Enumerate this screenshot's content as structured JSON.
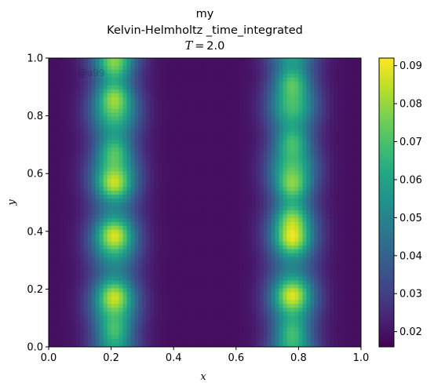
{
  "title": {
    "line1": "my",
    "line2": "Kelvin-Helmholtz _time_integrated",
    "line3": "T = 2.0"
  },
  "watermark": "@a99",
  "chart_data": {
    "type": "heatmap",
    "title": "my Kelvin-Helmholtz _time_integrated T = 2.0",
    "xlabel": "x",
    "ylabel": "y",
    "xlim": [
      0.0,
      1.0
    ],
    "ylim": [
      0.0,
      1.0
    ],
    "x_ticks": [
      "0.0",
      "0.2",
      "0.4",
      "0.6",
      "0.8",
      "1.0"
    ],
    "y_ticks": [
      "0.0",
      "0.2",
      "0.4",
      "0.6",
      "0.8",
      "1.0"
    ],
    "colormap": "viridis",
    "colorbar": {
      "min": 0.016,
      "max": 0.092,
      "ticks": [
        "0.02",
        "0.03",
        "0.04",
        "0.05",
        "0.06",
        "0.07",
        "0.08",
        "0.09"
      ]
    },
    "bands": [
      {
        "x_center": 0.21,
        "hotspots_y": [
          0.05,
          0.18,
          0.39,
          0.56,
          0.68,
          0.87,
          0.97
        ]
      },
      {
        "x_center": 0.78,
        "hotspots_y": [
          0.05,
          0.18,
          0.37,
          0.45,
          0.55,
          0.71,
          0.92
        ]
      }
    ],
    "grid": false
  }
}
